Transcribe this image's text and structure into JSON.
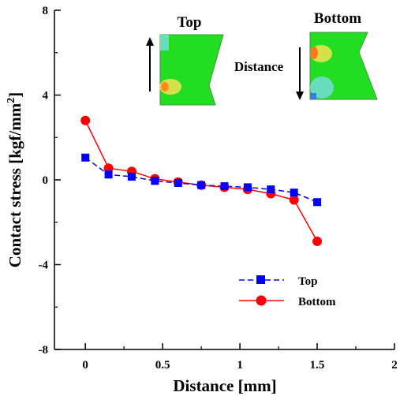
{
  "chart_data": {
    "type": "line",
    "xlabel": "Distance [mm]",
    "ylabel": "Contact stress [kgf/mm",
    "ylabel_sup": "2",
    "ylabel_end": "]",
    "xlim": [
      -0.2,
      2
    ],
    "ylim": [
      -8,
      8
    ],
    "xticks": [
      0,
      0.5,
      1,
      1.5,
      2
    ],
    "xtick_labels": [
      "0",
      "0.5",
      "1",
      "1.5",
      "2"
    ],
    "yticks": [
      -8,
      -4,
      0,
      4,
      8
    ],
    "ytick_labels": [
      "-8",
      "-4",
      "0",
      "4",
      "8"
    ],
    "grid": false,
    "legend_position": "bottom-right",
    "series": [
      {
        "name": "Top",
        "color": "#0000ff",
        "marker": "square",
        "line_style": "dashed",
        "x": [
          0,
          0.15,
          0.3,
          0.45,
          0.6,
          0.75,
          0.9,
          1.05,
          1.2,
          1.35,
          1.5
        ],
        "y": [
          1.05,
          0.25,
          0.15,
          -0.05,
          -0.15,
          -0.25,
          -0.3,
          -0.35,
          -0.45,
          -0.6,
          -1.05
        ]
      },
      {
        "name": "Bottom",
        "color": "#ff0000",
        "marker": "circle",
        "line_style": "solid",
        "x": [
          0,
          0.15,
          0.3,
          0.45,
          0.6,
          0.75,
          0.9,
          1.05,
          1.2,
          1.35,
          1.5
        ],
        "y": [
          2.8,
          0.55,
          0.4,
          0.05,
          -0.1,
          -0.25,
          -0.35,
          -0.45,
          -0.65,
          -0.95,
          -2.9
        ]
      }
    ],
    "insets": {
      "left_title": "Top",
      "right_title": "Bottom",
      "center_label": "Distance",
      "left_arrow": "up-arrow",
      "right_arrow": "down-arrow"
    }
  }
}
